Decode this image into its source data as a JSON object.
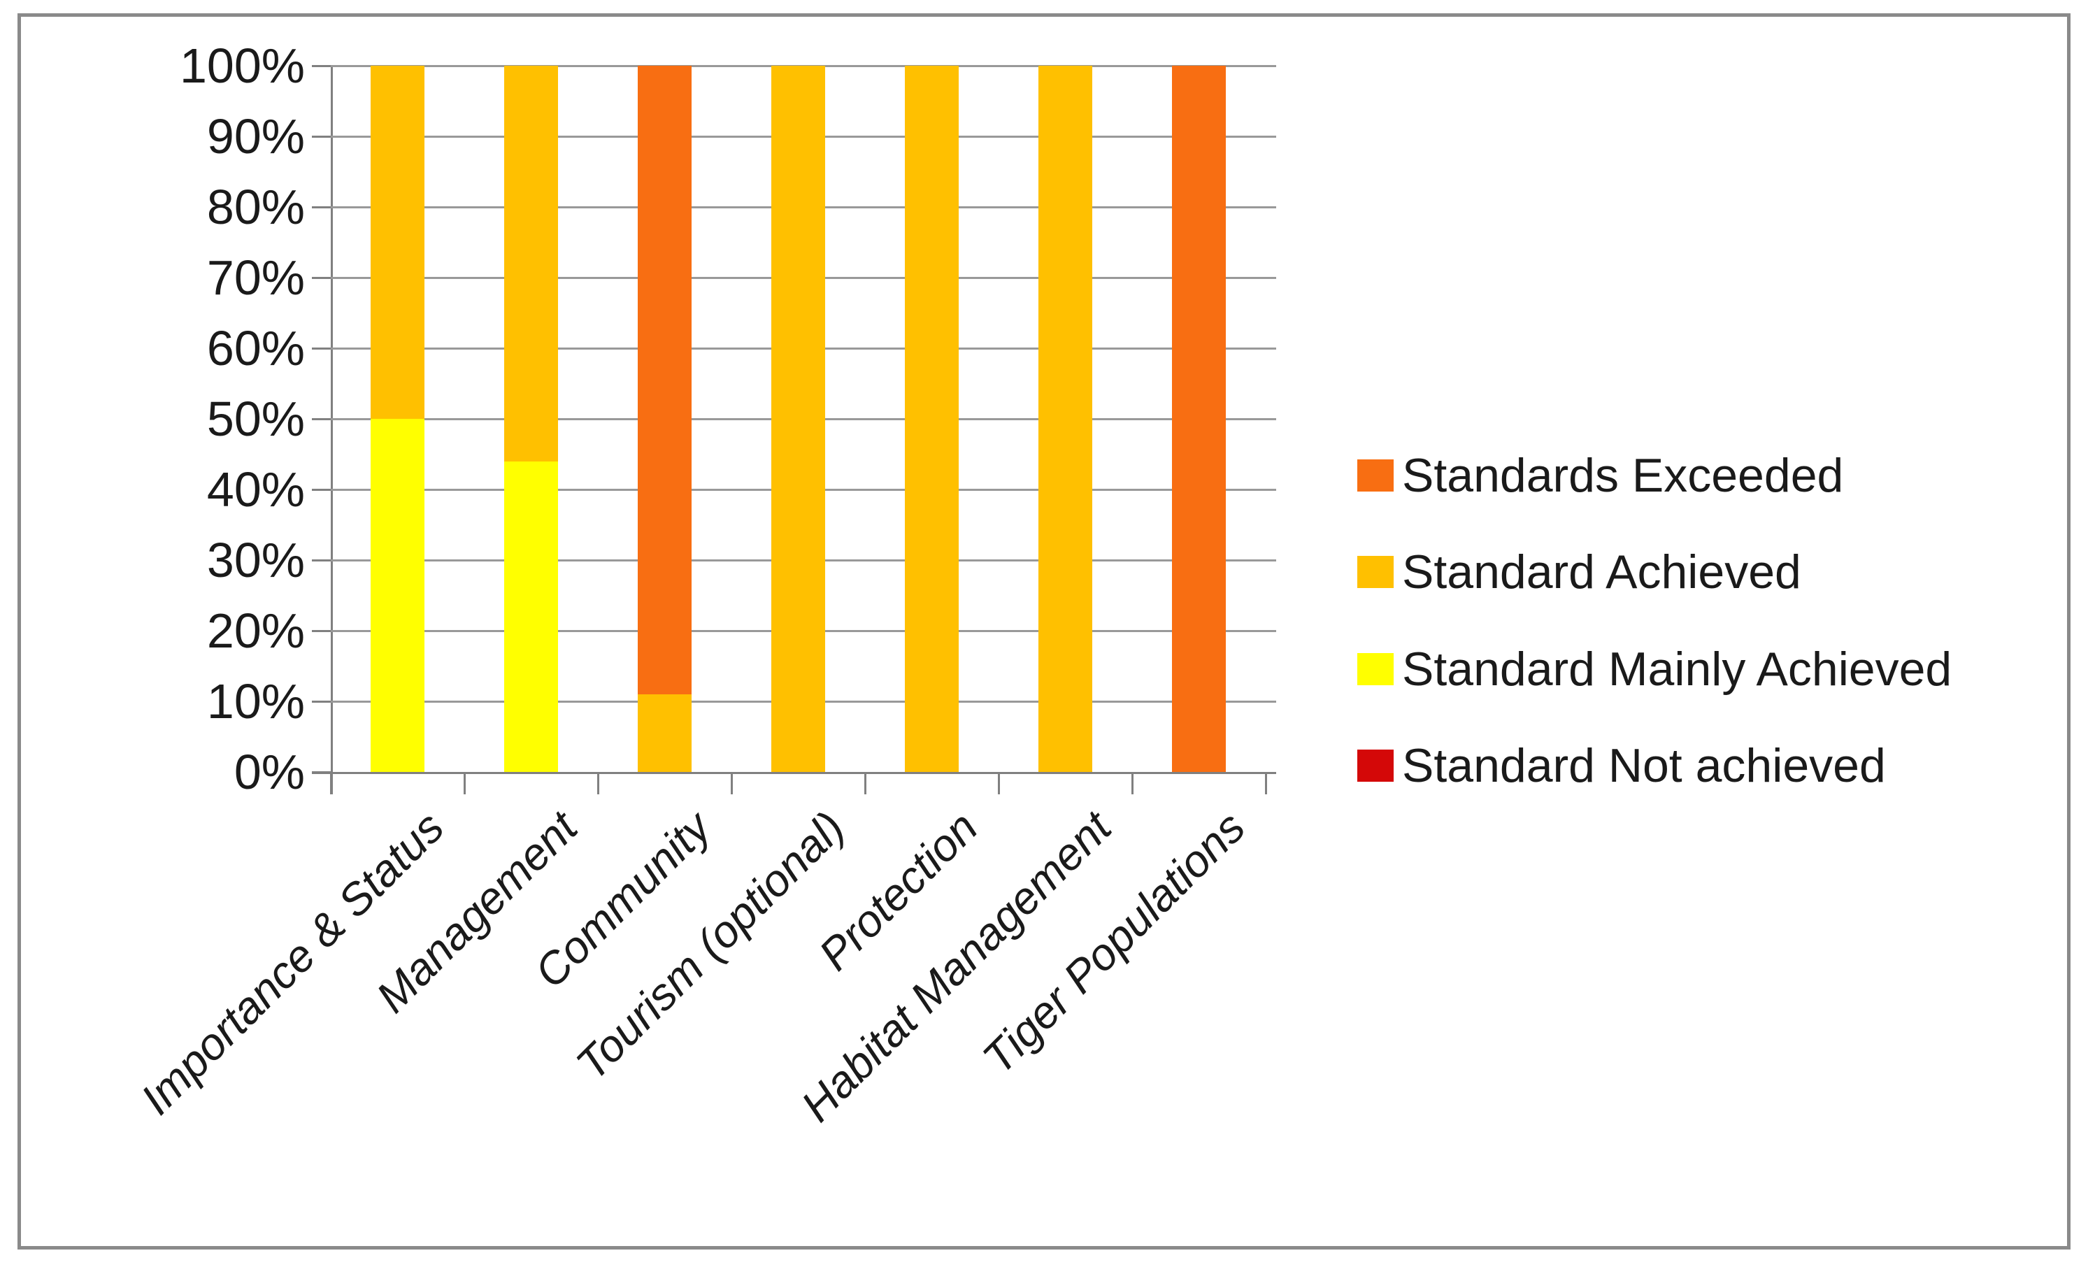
{
  "chart_data": {
    "type": "bar",
    "subtype": "stacked-100-percent",
    "title": "",
    "xlabel": "",
    "ylabel": "",
    "ylim": [
      0,
      100
    ],
    "grid": true,
    "legend_position": "right",
    "y_tick_labels": [
      "100%",
      "90%",
      "80%",
      "70%",
      "60%",
      "50%",
      "40%",
      "30%",
      "20%",
      "10%",
      "0%"
    ],
    "categories": [
      "Importance & Status",
      "Management",
      "Community",
      "Tourism (optional)",
      "Protection",
      "Habitat Management",
      "Tiger Populations"
    ],
    "series": [
      {
        "name": "Standards Exceeded",
        "color": "#F86E12",
        "values": [
          0,
          0,
          89,
          0,
          0,
          0,
          100
        ]
      },
      {
        "name": "Standard Achieved",
        "color": "#FFC000",
        "values": [
          50,
          56,
          11,
          100,
          100,
          100,
          0
        ]
      },
      {
        "name": "Standard Mainly Achieved",
        "color": "#FFFF00",
        "values": [
          50,
          44,
          0,
          0,
          0,
          0,
          0
        ]
      },
      {
        "name": "Standard Not achieved",
        "color": "#D40808",
        "values": [
          0,
          0,
          0,
          0,
          0,
          0,
          0
        ]
      }
    ],
    "stack_order_bottom_to_top": [
      "Standard Not achieved",
      "Standard Mainly Achieved",
      "Standard Achieved",
      "Standards Exceeded"
    ]
  },
  "colors": {
    "gridline": "#999999",
    "axis": "#808080",
    "border": "#8a8a8a",
    "text": "#1a1a1a"
  }
}
